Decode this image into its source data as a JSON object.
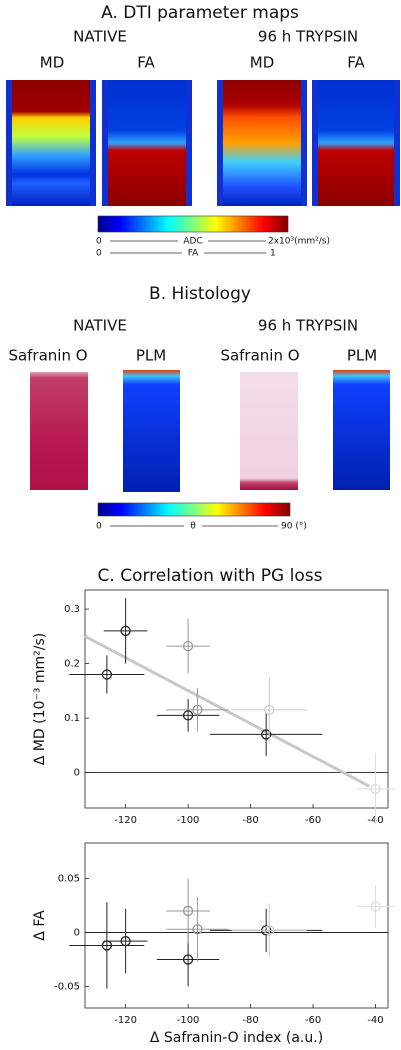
{
  "panel_a": {
    "title": "A. DTI parameter maps",
    "groups": [
      "NATIVE",
      "96 h TRYPSIN"
    ],
    "maps": [
      "MD",
      "FA",
      "MD",
      "FA"
    ],
    "colorbar": {
      "adc": [
        "0",
        "ADC",
        "2x10³(mm²/s)"
      ],
      "fa": [
        "0",
        "FA",
        "1"
      ]
    }
  },
  "panel_b": {
    "title": "B. Histology",
    "groups": [
      "NATIVE",
      "96 h TRYPSIN"
    ],
    "images": [
      "Safranin O",
      "PLM",
      "Safranin O",
      "PLM"
    ],
    "colorbar": [
      "0",
      "θ",
      "90 (°)"
    ]
  },
  "panel_c": {
    "title": "C. Correlation with PG loss"
  },
  "chart_data": [
    {
      "type": "scatter",
      "ylabel": "Δ MD (10⁻³ mm²/s)",
      "x": [
        -126,
        -120,
        -100,
        -100,
        -97,
        -75,
        -74,
        -40
      ],
      "values": [
        0.18,
        0.26,
        0.105,
        0.232,
        0.115,
        0.07,
        0.115,
        -0.03
      ],
      "x_errors": [
        12,
        7,
        10,
        7,
        10,
        18,
        12,
        6
      ],
      "y_errors": [
        0.035,
        0.06,
        0.03,
        0.05,
        0.04,
        0.04,
        0.06,
        0.065
      ],
      "colors": [
        "#222222",
        "#222222",
        "#222222",
        "#999999",
        "#999999",
        "#222222",
        "#cccccc",
        "#dddddd"
      ],
      "trend_line": {
        "x": [
          -133,
          -42
        ],
        "y": [
          0.25,
          -0.025
        ],
        "color": "#c8c8c8"
      },
      "hline": 0,
      "xlim": [
        -133,
        -36
      ],
      "xticks": [
        -120,
        -100,
        -80,
        -60,
        -40
      ],
      "ylim": [
        -0.065,
        0.335
      ],
      "yticks": [
        0,
        0.1,
        0.2,
        0.3
      ]
    },
    {
      "type": "scatter",
      "ylabel": "Δ FA",
      "xlabel": "Δ Safranin-O index (a.u.)",
      "x": [
        -126,
        -120,
        -100,
        -100,
        -97,
        -75,
        -74,
        -40
      ],
      "values": [
        -0.012,
        -0.008,
        -0.025,
        0.02,
        0.003,
        0.002,
        0.002,
        0.024
      ],
      "x_errors": [
        12,
        7,
        10,
        7,
        10,
        18,
        12,
        6
      ],
      "y_errors": [
        0.04,
        0.03,
        0.025,
        0.03,
        0.03,
        0.02,
        0.025,
        0.02
      ],
      "colors": [
        "#222222",
        "#222222",
        "#222222",
        "#999999",
        "#999999",
        "#222222",
        "#cccccc",
        "#dddddd"
      ],
      "hline": 0,
      "xlim": [
        -133,
        -36
      ],
      "xticks": [
        -120,
        -100,
        -80,
        -60,
        -40
      ],
      "ylim": [
        -0.07,
        0.083
      ],
      "yticks": [
        -0.05,
        0,
        0.05
      ]
    }
  ]
}
